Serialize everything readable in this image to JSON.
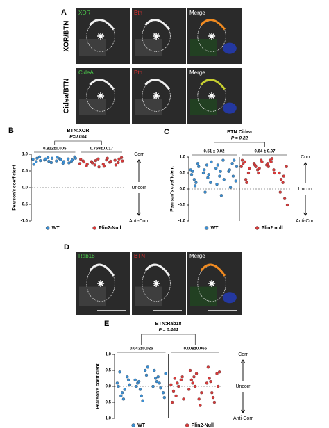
{
  "panels": {
    "a": {
      "label": "A",
      "rows": [
        {
          "label": "XOR/BTN",
          "tiles": [
            "XOR",
            "Btn",
            "Merge"
          ]
        },
        {
          "label": "Cidea/BTN",
          "tiles": [
            "CideA",
            "Btn",
            "Merge"
          ]
        }
      ]
    },
    "d": {
      "label": "D",
      "tiles": [
        "Rab18",
        "BTN",
        "Merge"
      ]
    }
  },
  "chart_data": [
    {
      "type": "dot",
      "label": "B",
      "title": "BTN:XOR",
      "p_value": "P=0.044",
      "annotations": [
        "0.812±0.005",
        "0.769±0.017"
      ],
      "ylabel": "Pearson's coefficient",
      "right_labels": [
        "Corr",
        "Uncorr",
        "Anti-Corr"
      ],
      "ylim": [
        -1,
        1
      ],
      "yticks": [
        {
          "value": 1,
          "label": "1.0"
        },
        {
          "value": 0.5,
          "label": "0.5"
        },
        {
          "value": 0,
          "label": "0.0"
        },
        {
          "value": -0.5,
          "label": "-0.5"
        },
        {
          "value": -1,
          "label": "-1.0"
        }
      ],
      "series": [
        {
          "name": "WT",
          "color": "#3b8fd4",
          "values": [
            [
              0.85,
              0.78,
              0.92,
              0.7,
              0.88,
              0.81
            ],
            [
              0.83,
              0.9,
              0.75,
              0.86,
              0.79,
              0.88
            ],
            [
              0.8,
              0.87,
              0.73,
              0.91,
              0.84,
              0.78
            ],
            [
              0.86,
              0.79,
              0.92,
              0.74,
              0.83,
              0.88
            ]
          ]
        },
        {
          "name": "Plin2-Null",
          "color": "#d93a3a",
          "values": [
            [
              0.72,
              0.8,
              0.65,
              0.85,
              0.77,
              0.7
            ],
            [
              0.78,
              0.68,
              0.86,
              0.74,
              0.81,
              0.62
            ],
            [
              0.7,
              0.83,
              0.76,
              0.64,
              0.88,
              0.79
            ],
            [
              0.82,
              0.75,
              0.9,
              0.68,
              0.86,
              0.8
            ]
          ]
        }
      ]
    },
    {
      "type": "dot",
      "label": "C",
      "title": "BTN:Cidea",
      "p_value": "P = 0.22",
      "annotations": [
        "0.51 ± 0.02",
        "0.64 ± 0.07"
      ],
      "ylabel": "Pearson's coefficient",
      "right_labels": [
        "Corr",
        "Uncorr",
        "Anti-Corr"
      ],
      "ylim": [
        -1,
        1
      ],
      "yticks": [
        {
          "value": 1,
          "label": "1.0"
        },
        {
          "value": 0.5,
          "label": "0.5"
        },
        {
          "value": 0,
          "label": "0.0"
        },
        {
          "value": -0.5,
          "label": "-0.5"
        },
        {
          "value": -1,
          "label": "-1.0"
        }
      ],
      "series": [
        {
          "name": "WT",
          "color": "#3b8fd4",
          "values": [
            [
              0.6,
              0.3,
              0.8,
              0.45,
              0.1,
              0.7,
              0.55,
              0.2
            ],
            [
              0.5,
              0.75,
              0.2,
              0.6,
              0.35,
              0.85,
              -0.1,
              0.45
            ],
            [
              0.65,
              0.4,
              0.9,
              0.15,
              0.55,
              0.3,
              0.75,
              -0.2
            ],
            [
              0.55,
              0.8,
              0.25,
              0.6,
              0.4,
              0.7,
              0.05,
              0.9
            ]
          ]
        },
        {
          "name": "Plin2 null",
          "color": "#d93a3a",
          "values": [
            [
              0.7,
              0.85,
              0.5,
              0.9,
              0.3,
              0.65,
              0.8,
              0.2
            ],
            [
              0.8,
              0.6,
              0.9,
              0.75,
              0.5,
              0.85,
              0.7,
              0.65
            ],
            [
              0.75,
              0.9,
              0.6,
              0.8,
              0.85,
              0.5,
              0.7,
              0.95
            ],
            [
              0.5,
              0.2,
              0.7,
              -0.1,
              0.4,
              -0.5,
              0.3,
              -0.3
            ]
          ]
        }
      ]
    },
    {
      "type": "dot",
      "label": "E",
      "title": "BTN:Rab18",
      "p_value": "P = 0.464",
      "annotations": [
        "0.043±0.026",
        "0.008±0.066"
      ],
      "ylabel": "Pearson's coefficient",
      "right_labels": [
        "Corr",
        "Uncorr",
        "Anti-Corr"
      ],
      "ylim": [
        -1,
        1
      ],
      "yticks": [
        {
          "value": 1,
          "label": "1.0"
        },
        {
          "value": 0.5,
          "label": "0.5"
        },
        {
          "value": 0,
          "label": "0.0"
        },
        {
          "value": -0.5,
          "label": "-0.5"
        },
        {
          "value": -1,
          "label": "-1.0"
        }
      ],
      "series": [
        {
          "name": "WT",
          "color": "#3b8fd4",
          "values": [
            [
              0.1,
              -0.2,
              0.3,
              0.0,
              -0.4,
              0.2,
              0.45,
              -0.1,
              0.05,
              -0.3
            ],
            [
              0.2,
              -0.1,
              0.5,
              0.0,
              -0.3,
              0.35,
              0.1,
              -0.45,
              0.6,
              0.15
            ],
            [
              0.0,
              0.3,
              -0.2,
              0.5,
              0.1,
              -0.35,
              0.25,
              -0.05,
              0.4,
              0.15
            ]
          ]
        },
        {
          "name": "Plin2-Null",
          "color": "#d93a3a",
          "values": [
            [
              0.05,
              -0.3,
              0.2,
              -0.5,
              0.1,
              0.3,
              -0.15,
              0.0,
              -0.4,
              0.25
            ],
            [
              -0.1,
              0.3,
              -0.4,
              0.5,
              0.0,
              -0.6,
              0.2,
              0.4,
              -0.2,
              0.1
            ],
            [
              0.1,
              -0.2,
              0.4,
              0.6,
              -0.35,
              0.0,
              0.25,
              -0.5,
              0.45,
              0.15
            ]
          ]
        }
      ]
    }
  ]
}
